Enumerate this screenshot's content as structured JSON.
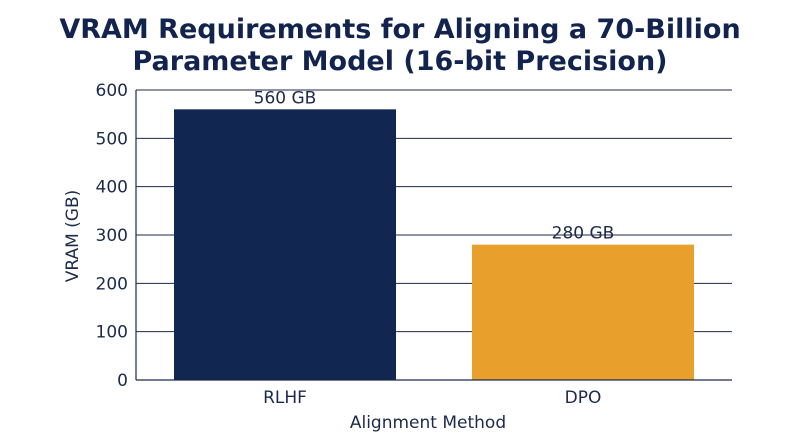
{
  "chart_data": {
    "type": "bar",
    "title_lines": [
      "VRAM Requirements for Aligning a 70-Billion",
      "Parameter Model (16-bit Precision)"
    ],
    "xlabel": "Alignment Method",
    "ylabel": "VRAM (GB)",
    "categories": [
      "RLHF",
      "DPO"
    ],
    "values": [
      560,
      280
    ],
    "data_labels": [
      "560 GB",
      "280 GB"
    ],
    "colors": [
      "#112650",
      "#e89f2b"
    ],
    "ylim": [
      0,
      600
    ],
    "yticks": [
      0,
      100,
      200,
      300,
      400,
      500,
      600
    ],
    "grid": true
  }
}
